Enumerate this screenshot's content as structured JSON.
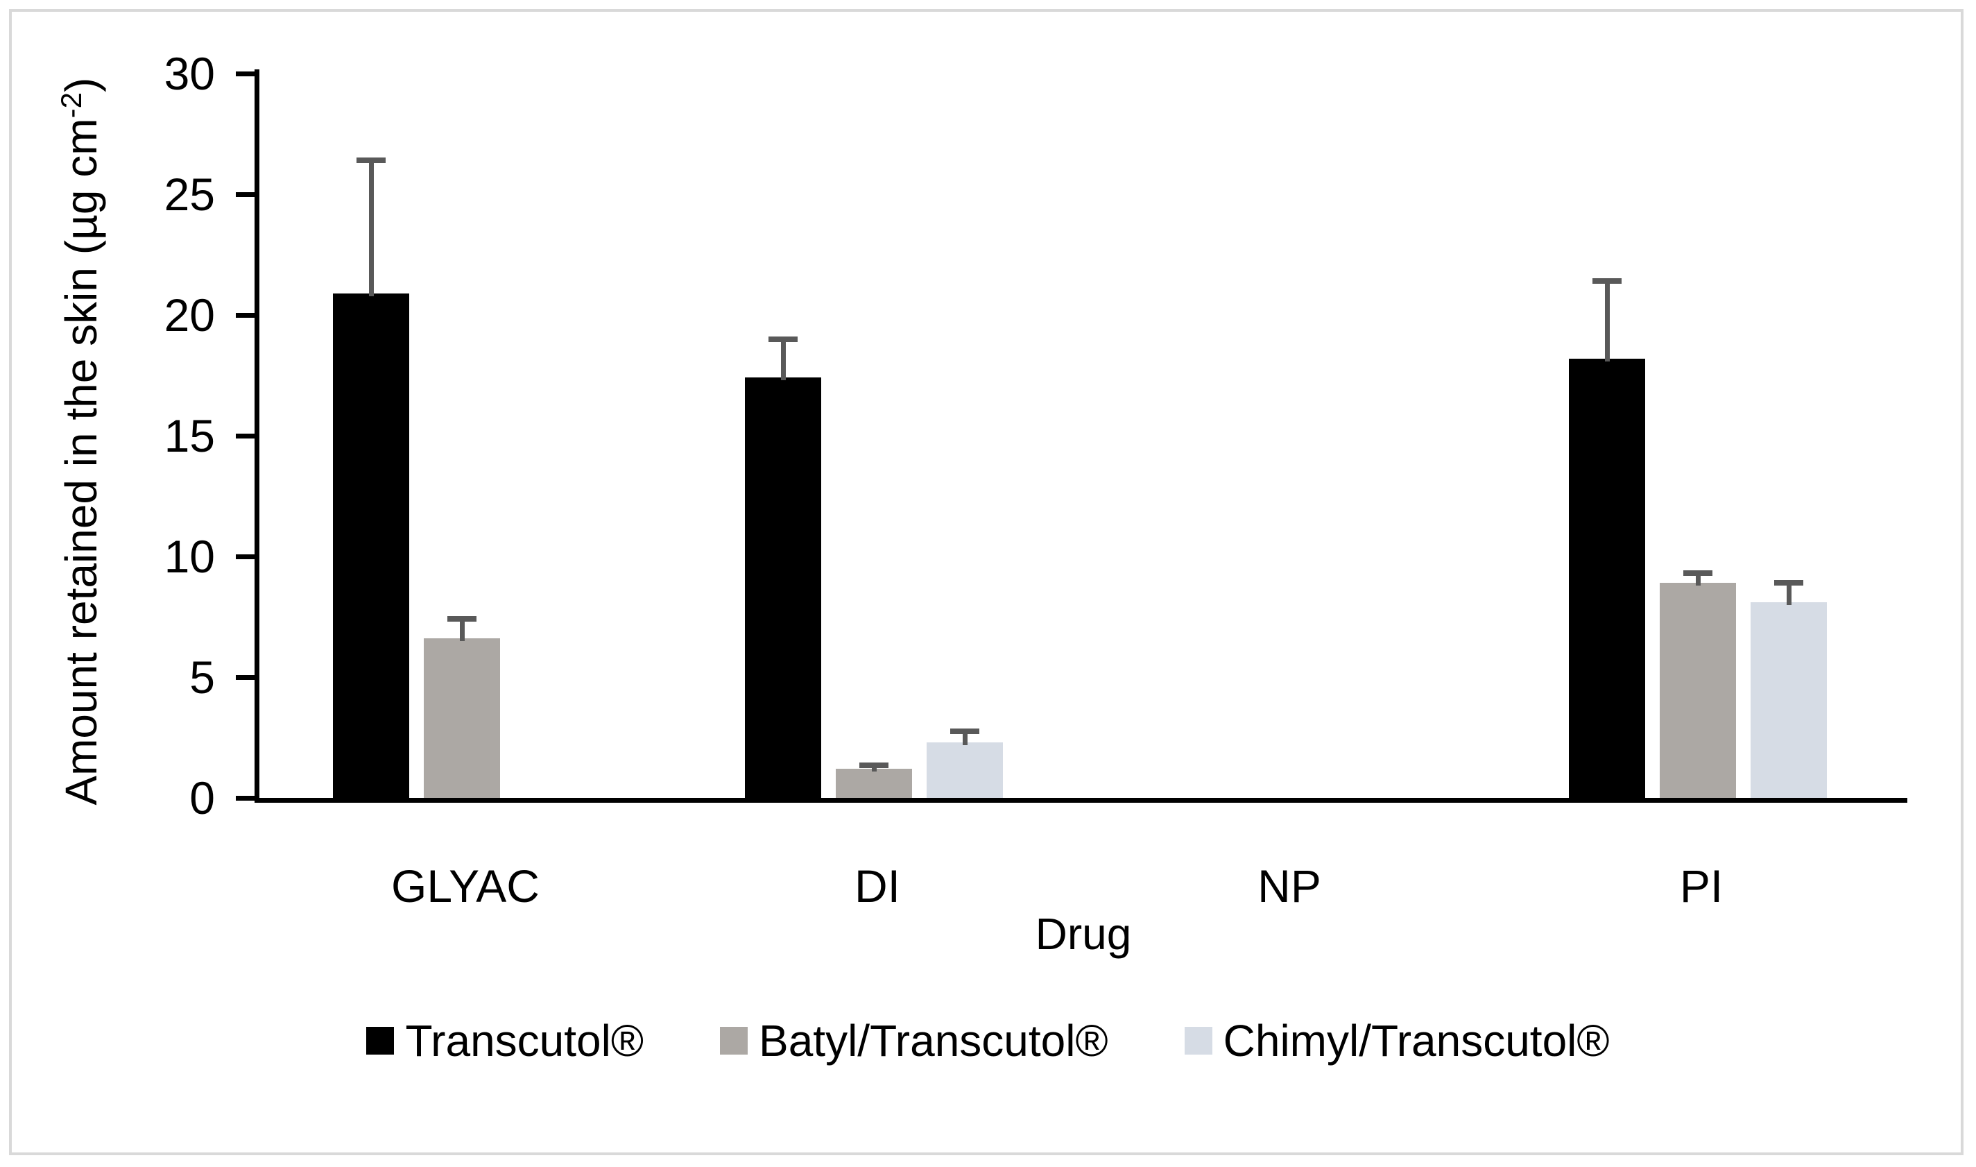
{
  "figure": {
    "border_color": "#d9d9d9",
    "background": "#ffffff"
  },
  "chart_data": {
    "type": "bar",
    "title": "",
    "xlabel": "Drug",
    "ylabel": "Amount retained in the skin (µg cm-2)",
    "ylabel_base": "Amount retained in the skin (µg cm",
    "ylabel_sup": "-2",
    "ylabel_close": ")",
    "ylim": [
      0,
      30
    ],
    "yticks": [
      0,
      5,
      10,
      15,
      20,
      25,
      30
    ],
    "grid": false,
    "legend_position": "bottom",
    "categories": [
      "GLYAC",
      "DI",
      "NP",
      "PI"
    ],
    "series": [
      {
        "name": "Transcutol®",
        "color": "#000000",
        "values": [
          20.9,
          17.4,
          0,
          18.2
        ],
        "errors_plus": [
          5.5,
          1.6,
          0,
          3.2
        ]
      },
      {
        "name": "Batyl/Transcutol®",
        "color": "#aca8a4",
        "values": [
          6.6,
          1.2,
          0,
          8.9
        ],
        "errors_plus": [
          0.8,
          0.15,
          0,
          0.4
        ]
      },
      {
        "name": "Chimyl/Transcutol®",
        "color": "#d6dce5",
        "values": [
          0,
          2.3,
          0,
          8.1
        ],
        "errors_plus": [
          0,
          0.45,
          0,
          0.8
        ]
      }
    ],
    "error_bar_color": "#595959",
    "axis_color": "#000000"
  }
}
